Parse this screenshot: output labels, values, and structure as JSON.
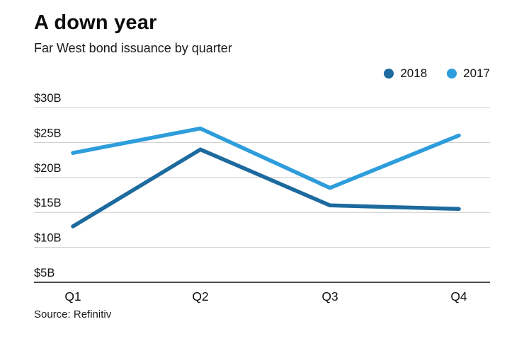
{
  "header": {
    "title": "A down year",
    "subtitle": "Far West bond issuance by quarter"
  },
  "legend": {
    "items": [
      {
        "label": "2018",
        "color": "#1d6a9e"
      },
      {
        "label": "2017",
        "color": "#2d9ddb"
      }
    ]
  },
  "source": "Source: Refinitiv",
  "colors": {
    "grid": "#cccccc",
    "axis": "#4d4d4d",
    "text": "#111111"
  },
  "chart_data": {
    "type": "line",
    "title": "A down year",
    "subtitle": "Far West bond issuance by quarter",
    "categories": [
      "Q1",
      "Q2",
      "Q3",
      "Q4"
    ],
    "series": [
      {
        "name": "2018",
        "color": "#1d6a9e",
        "values": [
          13,
          24,
          16,
          15.5
        ]
      },
      {
        "name": "2017",
        "color": "#2d9ddb",
        "values": [
          23.5,
          27,
          18.5,
          26
        ]
      }
    ],
    "xlabel": "",
    "ylabel": "",
    "ylim": [
      5,
      30
    ],
    "yticks": [
      30,
      25,
      20,
      15,
      10,
      5
    ],
    "ytick_labels": [
      "$30B",
      "$25B",
      "$20B",
      "$15B",
      "$10B",
      "$5B"
    ],
    "unit": "billions USD",
    "grid": true,
    "legend_position": "top-right",
    "source": "Source: Refinitiv"
  }
}
